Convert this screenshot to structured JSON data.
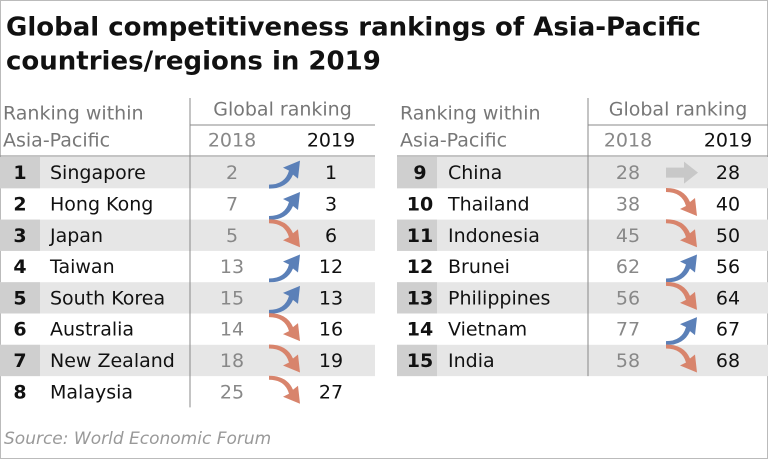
{
  "title": [
    "Global competitiveness rankings of Asia-Pacific",
    "countries/regions in 2019"
  ],
  "headers": {
    "rank": [
      "Ranking within",
      "Asia-Pacific"
    ],
    "global": "Global ranking",
    "years": [
      "2018",
      "2019"
    ]
  },
  "table": {
    "rows": [
      [
        1,
        "Singapore",
        2,
        1
      ],
      [
        2,
        "Hong Kong",
        7,
        3
      ],
      [
        3,
        "Japan",
        5,
        6
      ],
      [
        4,
        "Taiwan",
        13,
        12
      ],
      [
        5,
        "South Korea",
        15,
        13
      ],
      [
        6,
        "Australia",
        14,
        16
      ],
      [
        7,
        "New Zealand",
        18,
        19
      ],
      [
        8,
        "Malaysia",
        25,
        27
      ],
      [
        9,
        "China",
        28,
        28
      ],
      [
        10,
        "Thailand",
        38,
        40
      ],
      [
        11,
        "Indonesia",
        45,
        50
      ],
      [
        12,
        "Brunei",
        62,
        56
      ],
      [
        13,
        "Philippines",
        56,
        64
      ],
      [
        14,
        "Vietnam",
        77,
        67
      ],
      [
        15,
        "India",
        58,
        68
      ]
    ]
  },
  "source": "Source: World Economic Forum"
}
